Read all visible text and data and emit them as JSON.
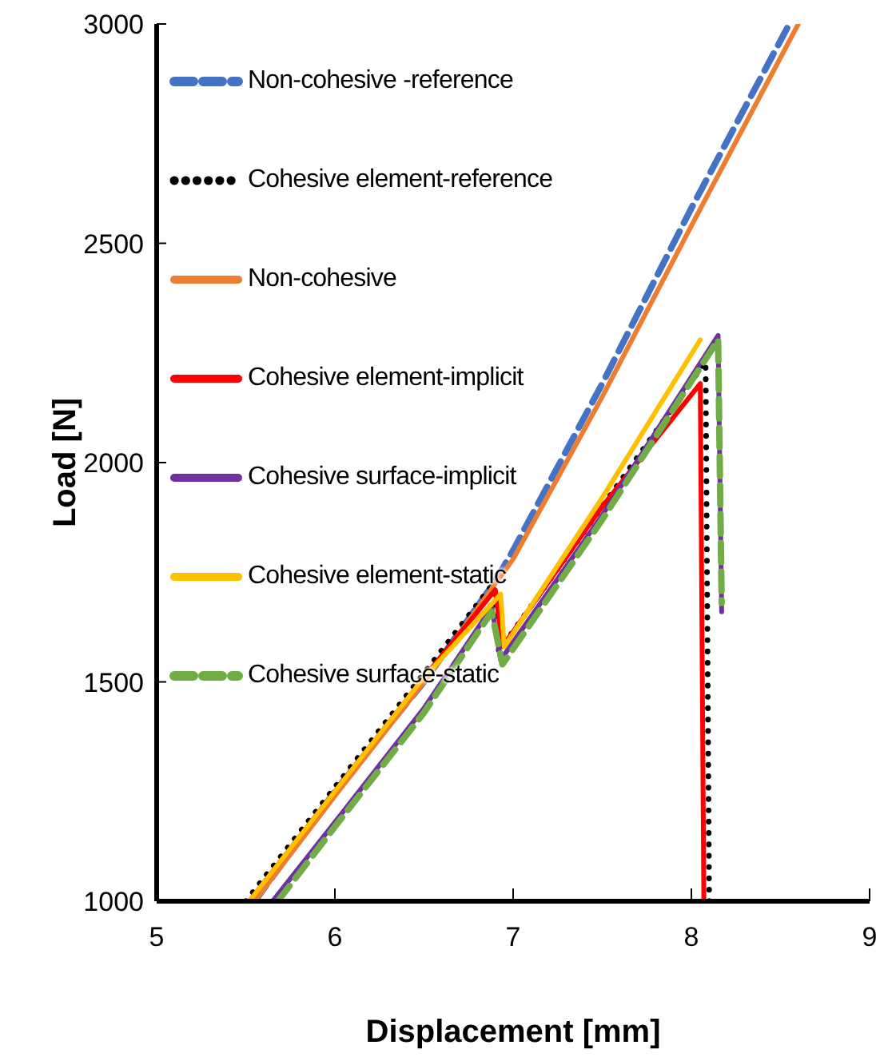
{
  "chart_data": {
    "type": "line",
    "xlabel": "Displacement [mm]",
    "ylabel": "Load [N]",
    "xlim": [
      5,
      9
    ],
    "ylim": [
      1000,
      3000
    ],
    "xticks": [
      5,
      6,
      7,
      8,
      9
    ],
    "yticks": [
      1000,
      1500,
      2000,
      2500,
      3000
    ],
    "grid": false,
    "legend": "top left",
    "marker": "none",
    "series": [
      {
        "name": "Non-cohesive -reference",
        "color": "#4472c4",
        "line_style": "dashed",
        "x": [
          5.55,
          6,
          6.5,
          6.9,
          7,
          7.5,
          8,
          8.55
        ],
        "values": [
          1000,
          1250,
          1500,
          1730,
          1800,
          2180,
          2580,
          3000
        ]
      },
      {
        "name": "Cohesive element-reference",
        "color": "#000000",
        "line_style": "dotted",
        "x": [
          5.5,
          6,
          6.5,
          6.88,
          6.92,
          7.5,
          8.08,
          8.1
        ],
        "values": [
          1000,
          1260,
          1520,
          1720,
          1570,
          1900,
          2230,
          1000
        ]
      },
      {
        "name": "Non-cohesive",
        "color": "#ed7d31",
        "line_style": "solid",
        "x": [
          5.55,
          6,
          6.5,
          7,
          7.5,
          8,
          8.6
        ],
        "values": [
          1000,
          1240,
          1500,
          1780,
          2150,
          2540,
          3000
        ]
      },
      {
        "name": "Cohesive element-implicit",
        "color": "#ff0000",
        "line_style": "solid",
        "x": [
          5.52,
          6,
          6.5,
          6.9,
          6.94,
          7.5,
          8.05,
          8.07
        ],
        "values": [
          1000,
          1250,
          1510,
          1710,
          1580,
          1900,
          2180,
          1000
        ]
      },
      {
        "name": "Cohesive surface-implicit",
        "color": "#7030a0",
        "line_style": "solid",
        "x": [
          5.65,
          6,
          6.5,
          6.88,
          6.93,
          7.5,
          8.15,
          8.17
        ],
        "values": [
          1000,
          1180,
          1440,
          1670,
          1550,
          1880,
          2290,
          1660
        ]
      },
      {
        "name": "Cohesive element-static",
        "color": "#ffc000",
        "line_style": "solid",
        "x": [
          5.52,
          6,
          6.5,
          6.93,
          6.95,
          7.5,
          8.05
        ],
        "values": [
          1000,
          1250,
          1510,
          1700,
          1580,
          1920,
          2280
        ]
      },
      {
        "name": "Cohesive surface-static",
        "color": "#70ad47",
        "line_style": "dashed",
        "x": [
          5.68,
          6,
          6.5,
          6.88,
          6.94,
          7.5,
          8.15,
          8.17
        ],
        "values": [
          1000,
          1170,
          1430,
          1660,
          1540,
          1870,
          2280,
          1680
        ]
      }
    ]
  }
}
